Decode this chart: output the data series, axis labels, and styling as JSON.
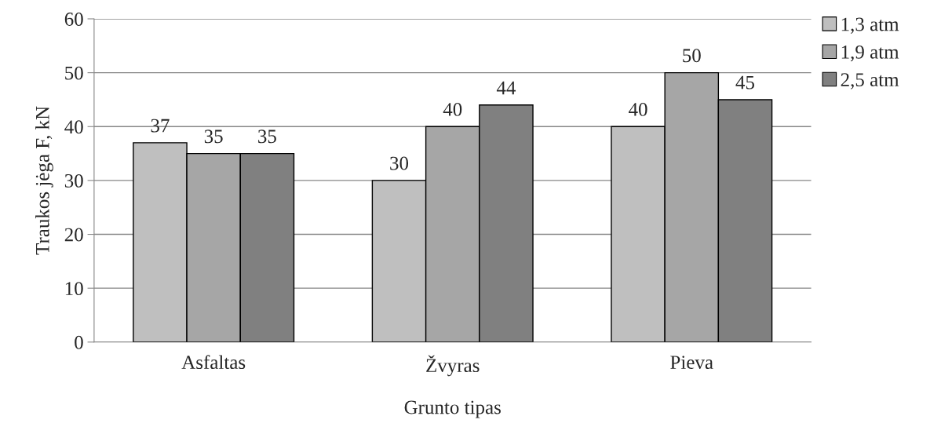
{
  "chart_data": {
    "type": "bar",
    "categories": [
      "Asfaltas",
      "Žvyras",
      "Pieva"
    ],
    "series": [
      {
        "name": "1,3 atm",
        "color": "#bfbfbf",
        "values": [
          37,
          30,
          40
        ]
      },
      {
        "name": "1,9 atm",
        "color": "#a6a6a6",
        "values": [
          35,
          40,
          50
        ]
      },
      {
        "name": "2,5 atm",
        "color": "#808080",
        "values": [
          35,
          44,
          45
        ]
      }
    ],
    "xlabel": "Grunto tipas",
    "ylabel": "Traukos jėga F, kN",
    "ylim": [
      0,
      60
    ],
    "yticks": [
      0,
      10,
      20,
      30,
      40,
      50,
      60
    ],
    "grid": "y",
    "legend": "top right",
    "data_labels": true
  }
}
